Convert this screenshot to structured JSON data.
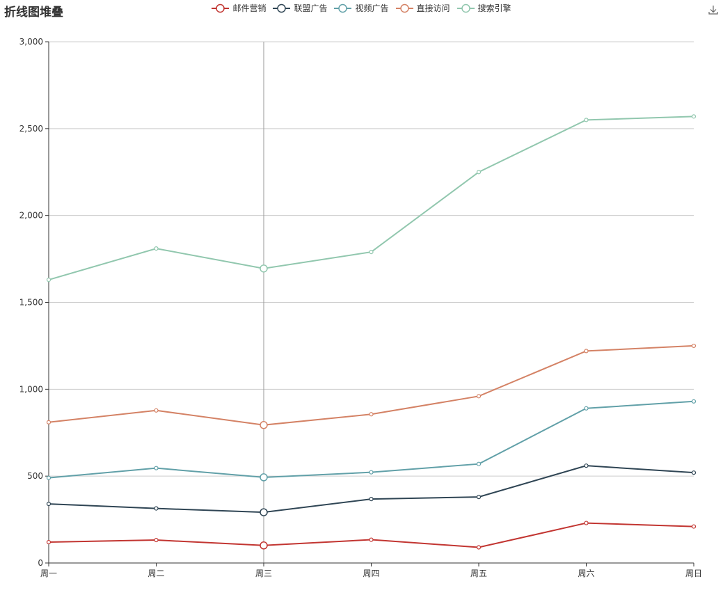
{
  "chart_data": {
    "type": "line",
    "title": "折线图堆叠",
    "stacked": true,
    "categories": [
      "周一",
      "周二",
      "周三",
      "周四",
      "周五",
      "周六",
      "周日"
    ],
    "ylim": [
      0,
      3000
    ],
    "yticks": [
      0,
      500,
      1000,
      1500,
      2000,
      2500,
      3000
    ],
    "ytick_labels": [
      "0",
      "500",
      "1,000",
      "1,500",
      "2,000",
      "2,500",
      "3,000"
    ],
    "grid": "horizontal",
    "legend_position": "top-center",
    "highlighted_category": "周三",
    "series": [
      {
        "name": "邮件营销",
        "color": "#c23531",
        "values": [
          120,
          132,
          101,
          134,
          90,
          230,
          210
        ]
      },
      {
        "name": "联盟广告",
        "color": "#2f4554",
        "values": [
          220,
          182,
          191,
          234,
          290,
          330,
          310
        ]
      },
      {
        "name": "视频广告",
        "color": "#61a0a8",
        "values": [
          150,
          232,
          201,
          154,
          190,
          330,
          410
        ]
      },
      {
        "name": "直接访问",
        "color": "#d48265",
        "values": [
          320,
          332,
          301,
          334,
          390,
          330,
          320
        ]
      },
      {
        "name": "搜索引擎",
        "color": "#91c7ae",
        "values": [
          820,
          932,
          901,
          934,
          1290,
          1330,
          1320
        ]
      }
    ]
  },
  "toolbox": {
    "download_icon": "download-icon"
  }
}
